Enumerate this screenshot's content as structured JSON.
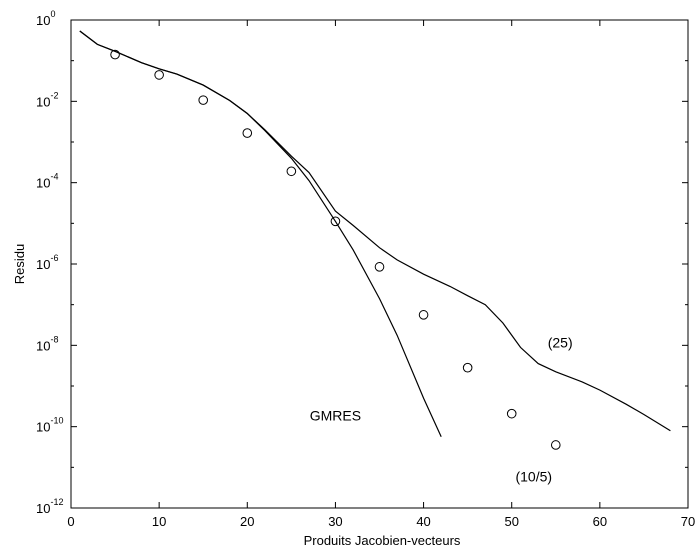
{
  "chart_data": {
    "type": "line",
    "title": "",
    "xlabel": "Produits Jacobien-vecteurs",
    "ylabel": "Residu",
    "xlim": [
      0,
      70
    ],
    "ylim_log10": [
      -12,
      0
    ],
    "y_scale": "log",
    "grid": false,
    "x_ticks": [
      0,
      10,
      20,
      30,
      40,
      50,
      60,
      70
    ],
    "x_tick_labels": [
      "0",
      "10",
      "20",
      "30",
      "40",
      "50",
      "60",
      "70"
    ],
    "y_ticks_exp": [
      0,
      -2,
      -4,
      -6,
      -8,
      -10,
      -12
    ],
    "y_tick_labels": [
      {
        "base": "10",
        "exp": "0"
      },
      {
        "base": "10",
        "exp": "-2"
      },
      {
        "base": "10",
        "exp": "-4"
      },
      {
        "base": "10",
        "exp": "-6"
      },
      {
        "base": "10",
        "exp": "-8"
      },
      {
        "base": "10",
        "exp": "-10"
      },
      {
        "base": "10",
        "exp": "-12"
      }
    ],
    "series": [
      {
        "label": "GMRES",
        "style": "line",
        "x": [
          1,
          3,
          5,
          8,
          10,
          12,
          15,
          18,
          20,
          22,
          25,
          27,
          30,
          32,
          35,
          37,
          40,
          42
        ],
        "log10_y": [
          -0.27,
          -0.6,
          -0.77,
          -1.05,
          -1.2,
          -1.33,
          -1.6,
          -1.98,
          -2.3,
          -2.72,
          -3.4,
          -3.95,
          -4.95,
          -5.65,
          -6.85,
          -7.75,
          -9.3,
          -10.25
        ]
      },
      {
        "label": "(25)",
        "style": "line",
        "x": [
          1,
          3,
          5,
          8,
          10,
          12,
          15,
          18,
          20,
          22,
          25,
          27,
          30,
          32,
          35,
          37,
          40,
          43,
          45,
          47,
          49,
          51,
          53,
          55,
          58,
          60,
          63,
          65,
          68
        ],
        "log10_y": [
          -0.27,
          -0.6,
          -0.77,
          -1.05,
          -1.2,
          -1.33,
          -1.6,
          -1.98,
          -2.3,
          -2.7,
          -3.35,
          -3.75,
          -4.7,
          -5.05,
          -5.6,
          -5.9,
          -6.25,
          -6.55,
          -6.78,
          -7.0,
          -7.45,
          -8.05,
          -8.45,
          -8.65,
          -8.9,
          -9.1,
          -9.45,
          -9.7,
          -10.1
        ]
      },
      {
        "label": "(10/5)",
        "style": "markers",
        "marker": "circle",
        "x": [
          5,
          10,
          15,
          20,
          25,
          30,
          35,
          40,
          45,
          50,
          55
        ],
        "log10_y": [
          -0.85,
          -1.35,
          -1.97,
          -2.78,
          -3.72,
          -4.95,
          -6.07,
          -7.25,
          -8.55,
          -9.68,
          -10.45
        ]
      }
    ],
    "annotations": [
      {
        "text": "GMRES",
        "x": 30,
        "log10_y": -9.85
      },
      {
        "text": "(25)",
        "x": 55.5,
        "log10_y": -8.05
      },
      {
        "text": "(10/5)",
        "x": 52.5,
        "log10_y": -11.35
      }
    ]
  }
}
